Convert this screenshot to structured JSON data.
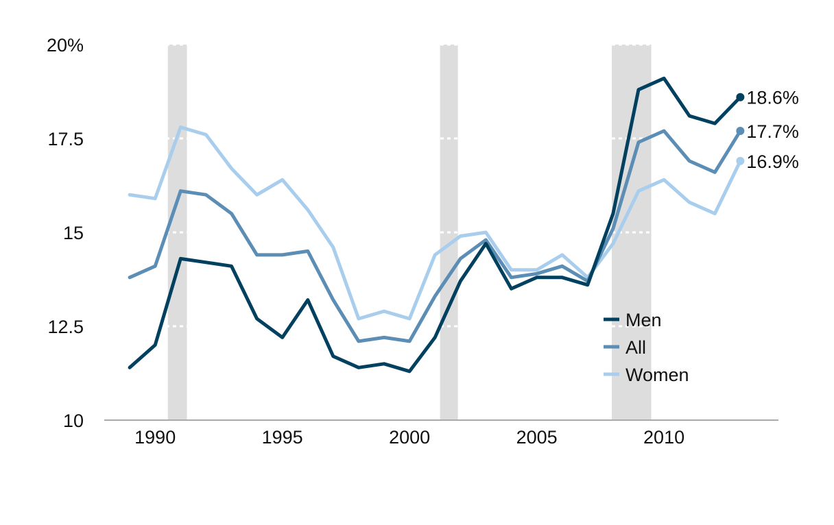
{
  "chart_data": {
    "type": "line",
    "title": "",
    "xlabel": "",
    "ylabel": "",
    "xlim": [
      1988,
      2014.5
    ],
    "ylim": [
      10,
      20
    ],
    "x_ticks": [
      1990,
      1995,
      2000,
      2005,
      2010
    ],
    "x_tick_labels": [
      "1990",
      "1995",
      "2000",
      "2005",
      "2010"
    ],
    "y_ticks": [
      10,
      12.5,
      15,
      17.5,
      20
    ],
    "y_tick_labels": [
      "10",
      "12.5",
      "15",
      "17.5",
      "20%"
    ],
    "grid": "dotted white gridlines drawn over recession bands",
    "recessions": [
      {
        "start": 1990.5,
        "end": 1991.25
      },
      {
        "start": 2001.2,
        "end": 2001.9
      },
      {
        "start": 2007.95,
        "end": 2009.5
      }
    ],
    "legend": {
      "placement": "bottom-right",
      "entries": [
        "Men",
        "All",
        "Women"
      ]
    },
    "x": [
      1989,
      1990,
      1991,
      1992,
      1993,
      1994,
      1995,
      1996,
      1997,
      1998,
      1999,
      2000,
      2001,
      2002,
      2003,
      2004,
      2005,
      2006,
      2007,
      2008,
      2009,
      2010,
      2011,
      2012,
      2013
    ],
    "series": [
      {
        "name": "Men",
        "color": "#02405f",
        "end_label": "18.6%",
        "values": [
          11.4,
          12.0,
          14.3,
          14.2,
          14.1,
          12.7,
          12.2,
          13.2,
          11.7,
          11.4,
          11.5,
          11.3,
          12.2,
          13.7,
          14.7,
          13.5,
          13.8,
          13.8,
          13.6,
          15.5,
          18.8,
          19.1,
          18.1,
          17.9,
          18.6
        ]
      },
      {
        "name": "All",
        "color": "#5b8db5",
        "end_label": "17.7%",
        "values": [
          13.8,
          14.1,
          16.1,
          16.0,
          15.5,
          14.4,
          14.4,
          14.5,
          13.2,
          12.1,
          12.2,
          12.1,
          13.3,
          14.3,
          14.8,
          13.8,
          13.9,
          14.1,
          13.7,
          15.1,
          17.4,
          17.7,
          16.9,
          16.6,
          17.7
        ]
      },
      {
        "name": "Women",
        "color": "#a9cdec",
        "end_label": "16.9%",
        "values": [
          16.0,
          15.9,
          17.8,
          17.6,
          16.7,
          16.0,
          16.4,
          15.6,
          14.6,
          12.7,
          12.9,
          12.7,
          14.4,
          14.9,
          15.0,
          14.0,
          14.0,
          14.4,
          13.8,
          14.7,
          16.1,
          16.4,
          15.8,
          15.5,
          16.9
        ]
      }
    ],
    "colors": {
      "recession_band": "#dddddd",
      "axis": "#aaaaaa",
      "gridline": "#ffffff"
    }
  }
}
